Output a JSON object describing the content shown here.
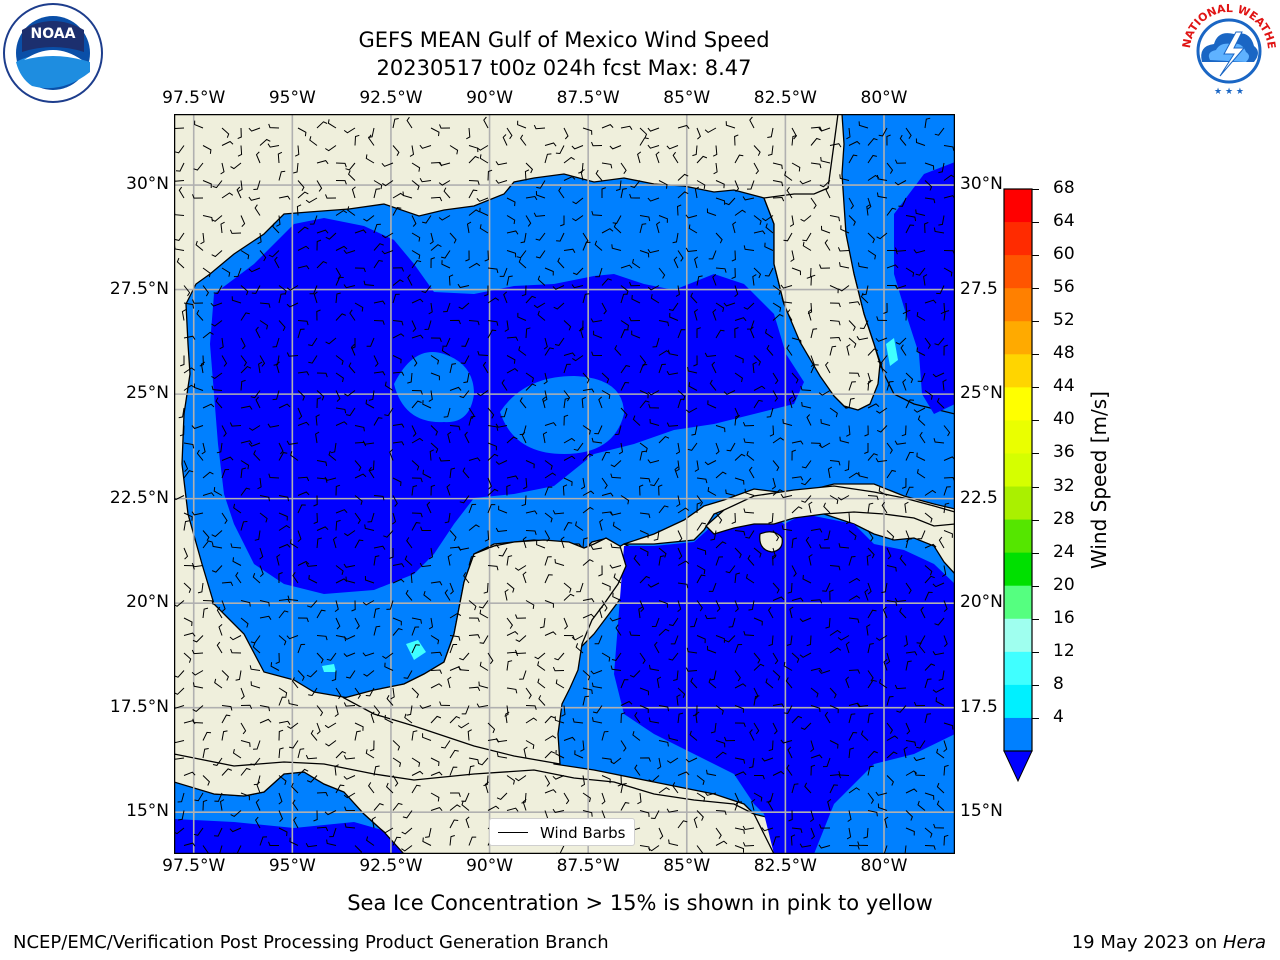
{
  "header": {
    "title_line1": "GEFS MEAN Gulf of Mexico Wind Speed",
    "title_line2": "20230517 t00z 024h fcst   Max: 8.47"
  },
  "logos": {
    "left": {
      "icon": "noaa-logo-icon",
      "text": "NOAA"
    },
    "right": {
      "icon": "nws-logo-icon",
      "ring_text": "NATIONAL WEATHER SERVICE"
    }
  },
  "map": {
    "lon_labels": [
      "97.5°W",
      "95°W",
      "92.5°W",
      "90°W",
      "87.5°W",
      "85°W",
      "82.5°W",
      "80°W"
    ],
    "lat_labels_left": [
      "30°N",
      "27.5°N",
      "25°N",
      "22.5°N",
      "20°N",
      "17.5°N",
      "15°N"
    ],
    "lat_labels_right": [
      "30°N",
      "27.5",
      "25°N",
      "22.5",
      "20°N",
      "17.5",
      "15°N"
    ],
    "lon_values": [
      -97.5,
      -95,
      -92.5,
      -90,
      -87.5,
      -85,
      -82.5,
      -80
    ],
    "lat_values": [
      30,
      27.5,
      25,
      22.5,
      20,
      17.5,
      15
    ],
    "lon_range": [
      -98,
      -78.2
    ],
    "lat_range": [
      14,
      31.7
    ],
    "land_color": "#efefdc",
    "grid": true,
    "legend": {
      "label": "Wind Barbs",
      "placement": "bottom-center"
    }
  },
  "colorbar": {
    "label": "Wind Speed [m/s]",
    "ticks": [
      "68",
      "64",
      "60",
      "56",
      "52",
      "48",
      "44",
      "40",
      "36",
      "32",
      "28",
      "24",
      "20",
      "16",
      "12",
      "8",
      "4"
    ],
    "colors": [
      "#ff0000",
      "#ff2b00",
      "#ff5500",
      "#ff8000",
      "#ffaa00",
      "#ffd500",
      "#ffff00",
      "#eaff00",
      "#d5ff00",
      "#aaf000",
      "#55e600",
      "#00e000",
      "#55ff80",
      "#9fffef",
      "#40ffff",
      "#00f0ff",
      "#0080ff"
    ],
    "under_color": "#0000ff"
  },
  "field_colors": {
    "low": "#0000ff",
    "mid": "#0080ff",
    "high": "#40ffff"
  },
  "notes": {
    "sea_ice": "Sea Ice Concentration > 15% is shown in pink to yellow"
  },
  "footer": {
    "left": "NCEP/EMC/Verification Post Processing Product Generation Branch",
    "right_prefix": "19 May 2023 on ",
    "right_host": "Hera"
  }
}
